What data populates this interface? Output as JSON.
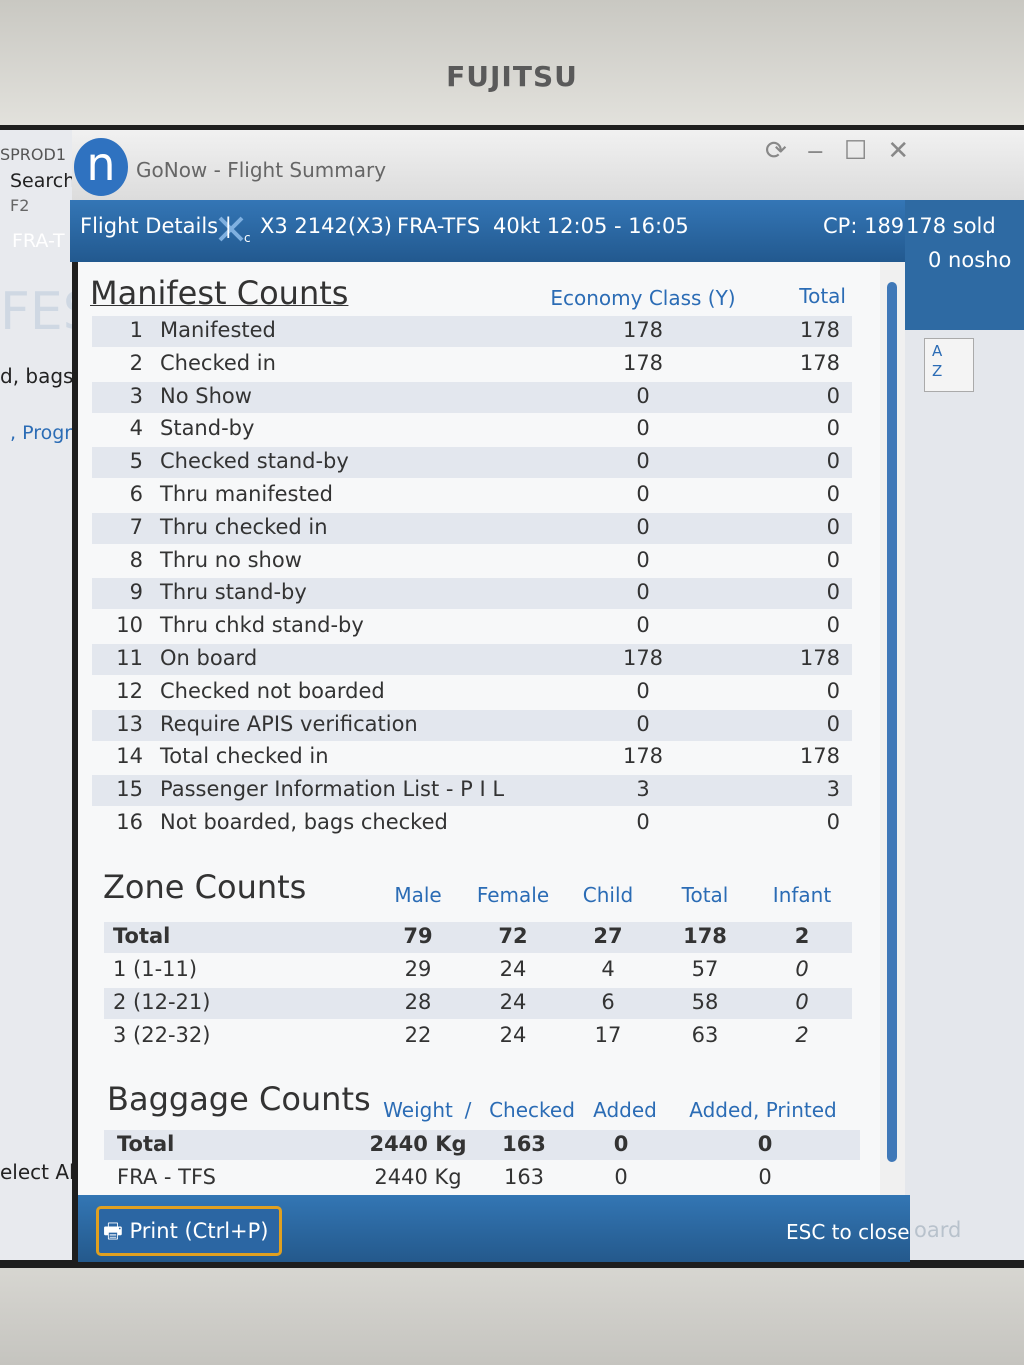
{
  "monitor_brand": "FUJITSU",
  "background_window": {
    "left_texts": [
      "SPROD1",
      "Search",
      "F2",
      "FRA-T",
      "FES",
      "d, bags",
      ", Progra",
      "elect Al"
    ],
    "right_texts": [
      "178 sold",
      "0 nosho",
      "oard"
    ],
    "sort_icon": [
      "A",
      "Z"
    ]
  },
  "window": {
    "logo": "n",
    "title": "GoNow - Flight Summary"
  },
  "header": {
    "label": "Flight Details |",
    "flight": "X3 2142(X3)",
    "route": "FRA-TFS",
    "time": "40kt 12:05 - 16:05",
    "capacity": "CP: 189"
  },
  "manifest": {
    "title": "Manifest Counts",
    "columns": [
      "Economy Class (Y)",
      "Total"
    ],
    "rows": [
      [
        1,
        "Manifested",
        178,
        178
      ],
      [
        2,
        "Checked in",
        178,
        178
      ],
      [
        3,
        "No Show",
        0,
        0
      ],
      [
        4,
        "Stand-by",
        0,
        0
      ],
      [
        5,
        "Checked stand-by",
        0,
        0
      ],
      [
        6,
        "Thru manifested",
        0,
        0
      ],
      [
        7,
        "Thru checked in",
        0,
        0
      ],
      [
        8,
        "Thru no show",
        0,
        0
      ],
      [
        9,
        "Thru stand-by",
        0,
        0
      ],
      [
        10,
        "Thru chkd stand-by",
        0,
        0
      ],
      [
        11,
        "On board",
        178,
        178
      ],
      [
        12,
        "Checked not boarded",
        0,
        0
      ],
      [
        13,
        "Require APIS verification",
        0,
        0
      ],
      [
        14,
        "Total checked in",
        178,
        178
      ],
      [
        15,
        "Passenger Information List - P I L",
        3,
        3
      ],
      [
        16,
        "Not boarded, bags checked",
        0,
        0
      ]
    ]
  },
  "zones": {
    "title": "Zone Counts",
    "columns": [
      "Male",
      "Female",
      "Child",
      "Total",
      "Infant"
    ],
    "rows": [
      [
        "Total",
        79,
        72,
        27,
        178,
        2
      ],
      [
        "1 (1-11)",
        29,
        24,
        4,
        57,
        0
      ],
      [
        "2 (12-21)",
        28,
        24,
        6,
        58,
        0
      ],
      [
        "3 (22-32)",
        22,
        24,
        17,
        63,
        2
      ]
    ]
  },
  "baggage": {
    "title": "Baggage Counts",
    "columns": [
      "Weight",
      "/",
      "Checked",
      "Added",
      "Added, Printed"
    ],
    "rows": [
      [
        "Total",
        "2440 Kg",
        163,
        0,
        0
      ],
      [
        "FRA - TFS",
        "2440 Kg",
        163,
        0,
        0
      ]
    ]
  },
  "footer": {
    "print_button": "Print (Ctrl+P)",
    "close_hint": "ESC to close"
  }
}
